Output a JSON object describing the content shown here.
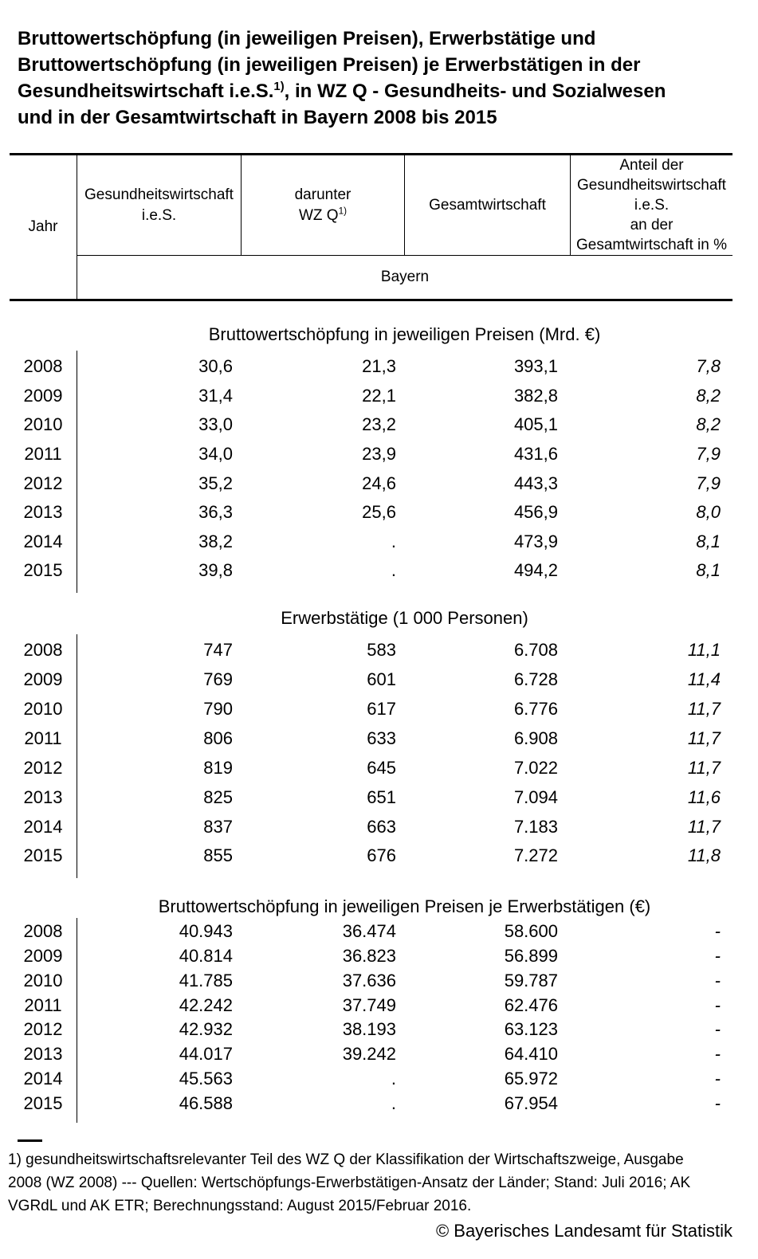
{
  "title": {
    "line1": "Bruttowertschöpfung (in jeweiligen Preisen), Erwerbstätige und",
    "line2": "Bruttowertschöpfung (in jeweiligen Preisen) je Erwerbstätigen in der",
    "line3_pre": "Gesundheitswirtschaft i.e.S.",
    "line3_sup": "1)",
    "line3_post": ", in WZ Q - Gesundheits- und Sozialwesen",
    "line4": "und in der Gesamtwirtschaft in Bayern 2008 bis 2015"
  },
  "table": {
    "header": {
      "jahr": "Jahr",
      "col1_line1": "Gesundheitswirtschaft",
      "col1_line2": "i.e.S.",
      "col2_line1": "darunter",
      "col2_line2_pre": "WZ Q",
      "col2_line2_sup": "1)",
      "col3": "Gesamtwirtschaft",
      "col4_lines": [
        "Anteil der",
        "Gesundheitswirtschaft",
        "i.e.S.",
        "an der",
        "Gesamtwirtschaft in %"
      ],
      "region": "Bayern"
    },
    "sections": [
      {
        "title": "Bruttowertschöpfung in jeweiligen Preisen (Mrd. €)",
        "rows": [
          [
            "2008",
            "30,6",
            "21,3",
            "393,1",
            "7,8"
          ],
          [
            "2009",
            "31,4",
            "22,1",
            "382,8",
            "8,2"
          ],
          [
            "2010",
            "33,0",
            "23,2",
            "405,1",
            "8,2"
          ],
          [
            "2011",
            "34,0",
            "23,9",
            "431,6",
            "7,9"
          ],
          [
            "2012",
            "35,2",
            "24,6",
            "443,3",
            "7,9"
          ],
          [
            "2013",
            "36,3",
            "25,6",
            "456,9",
            "8,0"
          ],
          [
            "2014",
            "38,2",
            ".",
            "473,9",
            "8,1"
          ],
          [
            "2015",
            "39,8",
            ".",
            "494,2",
            "8,1"
          ]
        ]
      },
      {
        "title": "Erwerbstätige (1 000 Personen)",
        "rows": [
          [
            "2008",
            "747",
            "583",
            "6.708",
            "11,1"
          ],
          [
            "2009",
            "769",
            "601",
            "6.728",
            "11,4"
          ],
          [
            "2010",
            "790",
            "617",
            "6.776",
            "11,7"
          ],
          [
            "2011",
            "806",
            "633",
            "6.908",
            "11,7"
          ],
          [
            "2012",
            "819",
            "645",
            "7.022",
            "11,7"
          ],
          [
            "2013",
            "825",
            "651",
            "7.094",
            "11,6"
          ],
          [
            "2014",
            "837",
            "663",
            "7.183",
            "11,7"
          ],
          [
            "2015",
            "855",
            "676",
            "7.272",
            "11,8"
          ]
        ]
      },
      {
        "title": "Bruttowertschöpfung in jeweiligen Preisen je Erwerbstätigen (€)",
        "rows": [
          [
            "2008",
            "40.943",
            "36.474",
            "58.600",
            "-"
          ],
          [
            "2009",
            "40.814",
            "36.823",
            "56.899",
            "-"
          ],
          [
            "2010",
            "41.785",
            "37.636",
            "59.787",
            "-"
          ],
          [
            "2011",
            "42.242",
            "37.749",
            "62.476",
            "-"
          ],
          [
            "2012",
            "42.932",
            "38.193",
            "63.123",
            "-"
          ],
          [
            "2013",
            "44.017",
            "39.242",
            "64.410",
            "-"
          ],
          [
            "2014",
            "45.563",
            ".",
            "65.972",
            "-"
          ],
          [
            "2015",
            "46.588",
            ".",
            "67.954",
            "-"
          ]
        ]
      }
    ]
  },
  "footnote": {
    "line1": "1) gesundheitswirtschaftsrelevanter Teil des WZ Q der Klassifikation der Wirtschaftszweige, Ausgabe",
    "line2": "2008 (WZ 2008) --- Quellen: Wertschöpfungs-Erwerbstätigen-Ansatz der Länder; Stand: Juli 2016; AK",
    "line3": "VGRdL und AK ETR; Berechnungsstand: August 2015/Februar 2016."
  },
  "copyright": "© Bayerisches Landesamt für Statistik",
  "colors": {
    "text": "#000000",
    "background": "#ffffff",
    "line": "#000000"
  }
}
